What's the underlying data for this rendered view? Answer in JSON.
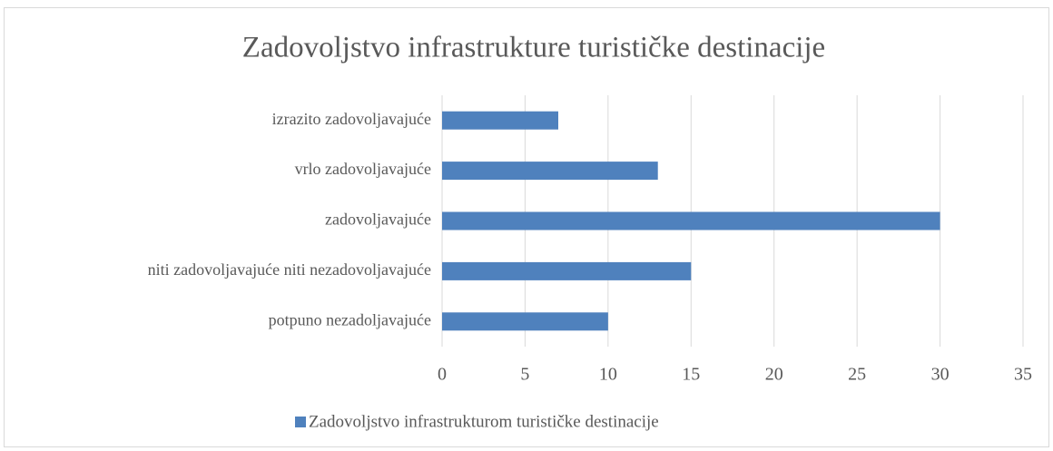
{
  "chart_data": {
    "type": "bar",
    "orientation": "horizontal",
    "title": "Zadovoljstvo infrastrukture turističke destinacije",
    "categories": [
      "izrazito zadovoljavajuće",
      "vrlo zadovoljavajuće",
      "zadovoljavajuće",
      "niti zadovoljavajuće niti nezadovoljavajuće",
      "potpuno nezadoljavajuće"
    ],
    "series": [
      {
        "name": "Zadovoljstvo infrastrukturom turističke destinacije",
        "color": "#4f81bd",
        "values": [
          7,
          13,
          30,
          15,
          10
        ]
      }
    ],
    "xlim": [
      0,
      35
    ],
    "xticks": [
      0,
      5,
      10,
      15,
      20,
      25,
      30,
      35
    ],
    "grid": true,
    "legend": "bottom"
  }
}
